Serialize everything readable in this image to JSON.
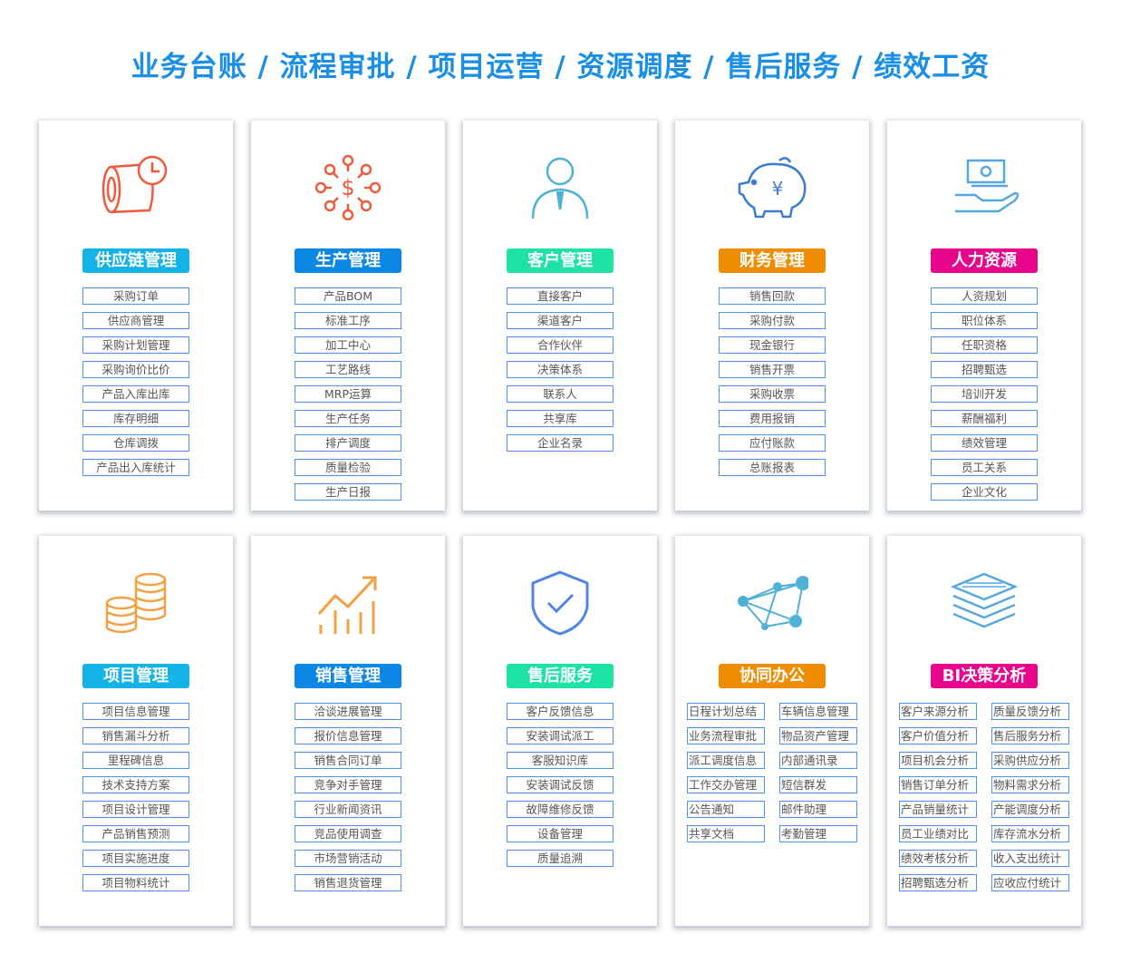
{
  "title": "业务台账 / 流程审批 / 项目运营 / 资源调度 / 售后服务 / 绩效工资",
  "cards": [
    {
      "name": "供应链管理",
      "color": "#13b3e8",
      "icon": "pipe-clock-icon",
      "items": [
        "采购订单",
        "供应商管理",
        "采购计划管理",
        "采购询价比价",
        "产品入库出库",
        "库存明细",
        "仓库调拨",
        "产品出入库统计"
      ]
    },
    {
      "name": "生产管理",
      "color": "#0b87e6",
      "icon": "dollar-network-icon",
      "items": [
        "产品BOM",
        "标准工序",
        "加工中心",
        "工艺路线",
        "MRP运算",
        "生产任务",
        "排产调度",
        "质量检验",
        "生产日报"
      ]
    },
    {
      "name": "客户管理",
      "color": "#1de2a6",
      "icon": "person-icon",
      "items": [
        "直接客户",
        "渠道客户",
        "合作伙伴",
        "决策体系",
        "联系人",
        "共享库",
        "企业名录"
      ]
    },
    {
      "name": "财务管理",
      "color": "#f08c00",
      "icon": "piggy-bank-icon",
      "items": [
        "销售回款",
        "采购付款",
        "现金银行",
        "销售开票",
        "采购收票",
        "费用报销",
        "应付账款",
        "总账报表"
      ]
    },
    {
      "name": "人力资源",
      "color": "#e8058c",
      "icon": "hand-money-icon",
      "items": [
        "人资规划",
        "职位体系",
        "任职资格",
        "招聘甄选",
        "培训开发",
        "薪酬福利",
        "绩效管理",
        "员工关系",
        "企业文化"
      ]
    },
    {
      "name": "项目管理",
      "color": "#13b3e8",
      "icon": "coins-icon",
      "items": [
        "项目信息管理",
        "销售漏斗分析",
        "里程碑信息",
        "技术支持方案",
        "项目设计管理",
        "产品销售预测",
        "项目实施进度",
        "项目物料统计"
      ]
    },
    {
      "name": "销售管理",
      "color": "#0b87e6",
      "icon": "growth-chart-icon",
      "items": [
        "洽谈进展管理",
        "报价信息管理",
        "销售合同订单",
        "竞争对手管理",
        "行业新闻资讯",
        "竞品使用调查",
        "市场营销活动",
        "销售退货管理"
      ]
    },
    {
      "name": "售后服务",
      "color": "#1de2a6",
      "icon": "shield-check-icon",
      "items": [
        "客户反馈信息",
        "安装调试派工",
        "客服知识库",
        "安装调试反馈",
        "故障维修反馈",
        "设备管理",
        "质量追溯"
      ]
    },
    {
      "name": "协同办公",
      "color": "#f08c00",
      "icon": "network-icon",
      "items": [
        "日程计划总结",
        "车辆信息管理",
        "业务流程审批",
        "物品资产管理",
        "派工调度信息",
        "内部通讯录",
        "工作交办管理",
        "短信群发",
        "公告通知",
        "邮件助理",
        "共享文档",
        "考勤管理"
      ]
    },
    {
      "name": "BI决策分析",
      "color": "#e8058c",
      "icon": "layers-icon",
      "items": [
        "客户来源分析",
        "质量反馈分析",
        "客户价值分析",
        "售后服务分析",
        "项目机会分析",
        "采购供应分析",
        "销售订单分析",
        "物料需求分析",
        "产品销量统计",
        "产能调度分析",
        "员工业绩对比",
        "库存流水分析",
        "绩效考核分析",
        "收入支出统计",
        "招聘甄选分析",
        "应收应付统计"
      ]
    }
  ]
}
